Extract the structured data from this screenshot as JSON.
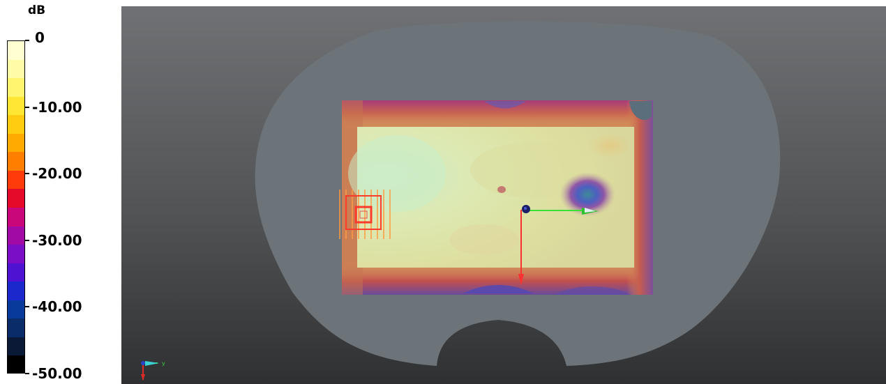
{
  "legend": {
    "unit": "dB",
    "ticks": [
      {
        "label": "0",
        "fraction": 0.0
      },
      {
        "label": "-10.00",
        "fraction": 0.2
      },
      {
        "label": "-20.00",
        "fraction": 0.4
      },
      {
        "label": "-30.00",
        "fraction": 0.6
      },
      {
        "label": "-40.00",
        "fraction": 0.8
      },
      {
        "label": "-50.00",
        "fraction": 1.0
      }
    ],
    "colors": [
      "#fffed0",
      "#fffba6",
      "#fff56e",
      "#ffe634",
      "#ffcc12",
      "#ffaa00",
      "#ff7e00",
      "#ff3b0c",
      "#e60a2a",
      "#c9077a",
      "#a20aa6",
      "#7a0ec6",
      "#4d12d2",
      "#1b28cc",
      "#083a9c",
      "#0a2d6a",
      "#0a1936",
      "#000000"
    ]
  },
  "axis_triad": {
    "y_label": "y"
  },
  "colors": {
    "background_top": "#6f7174",
    "background_bottom": "#2f3031",
    "phantom": "#6c7479",
    "x_axis": "#ff3030",
    "y_axis": "#38e038"
  }
}
